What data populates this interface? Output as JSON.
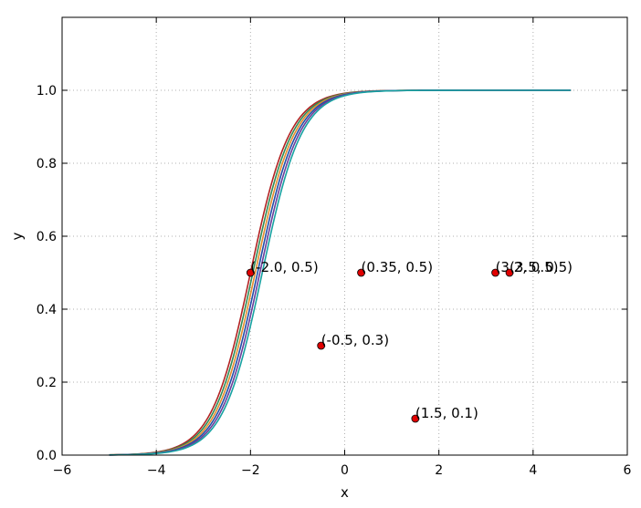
{
  "chart_data": {
    "type": "line",
    "title": "",
    "xlabel": "x",
    "ylabel": "y",
    "xlim": [
      -6,
      6
    ],
    "ylim": [
      0.0,
      1.2
    ],
    "xticks": [
      -6,
      -4,
      -2,
      0,
      2,
      4,
      6
    ],
    "xtick_labels": [
      "−6",
      "−4",
      "−2",
      "0",
      "2",
      "4",
      "6"
    ],
    "yticks": [
      0.0,
      0.2,
      0.4,
      0.6,
      0.8,
      1.0
    ],
    "ytick_labels": [
      "0.0",
      "0.2",
      "0.4",
      "0.6",
      "0.8",
      "1.0"
    ],
    "grid": true,
    "series": [
      {
        "center": -2.0,
        "steepness": 2.4,
        "color": "#b22222",
        "x_range": [
          -5.0,
          4.8
        ]
      },
      {
        "center": -1.95,
        "steepness": 2.4,
        "color": "#2e8b57",
        "x_range": [
          -5.0,
          4.8
        ]
      },
      {
        "center": -1.9,
        "steepness": 2.4,
        "color": "#e38c2c",
        "x_range": [
          -5.0,
          4.8
        ]
      },
      {
        "center": -1.85,
        "steepness": 2.4,
        "color": "#1f4fa8",
        "x_range": [
          -5.0,
          4.8
        ]
      },
      {
        "center": -1.8,
        "steepness": 2.4,
        "color": "#6a3d9a",
        "x_range": [
          -5.0,
          4.8
        ]
      },
      {
        "center": -1.75,
        "steepness": 2.4,
        "color": "#17a2a2",
        "x_range": [
          -5.0,
          4.8
        ]
      }
    ],
    "points": [
      {
        "x": -2.0,
        "y": 0.5,
        "label": "(-2.0, 0.5)"
      },
      {
        "x": 0.35,
        "y": 0.5,
        "label": "(0.35, 0.5)"
      },
      {
        "x": 3.2,
        "y": 0.5,
        "label": "(3.2, 0.5)"
      },
      {
        "x": 3.5,
        "y": 0.5,
        "label": "(3.5, 0.5)"
      },
      {
        "x": -0.5,
        "y": 0.3,
        "label": "(-0.5, 0.3)"
      },
      {
        "x": 1.5,
        "y": 0.1,
        "label": "(1.5, 0.1)"
      }
    ],
    "point_color": "#e00000"
  }
}
